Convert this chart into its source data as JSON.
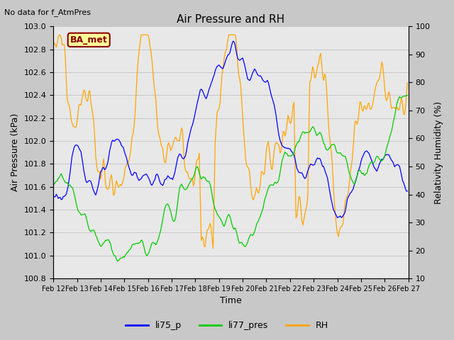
{
  "title": "Air Pressure and RH",
  "subtitle": "No data for f_AtmPres",
  "xlabel": "Time",
  "ylabel_left": "Air Pressure (kPa)",
  "ylabel_right": "Relativity Humidity (%)",
  "ylim_left": [
    100.8,
    103.0
  ],
  "ylim_right": [
    10,
    100
  ],
  "yticks_left": [
    100.8,
    101.0,
    101.2,
    101.4,
    101.6,
    101.8,
    102.0,
    102.2,
    102.4,
    102.6,
    102.8,
    103.0
  ],
  "yticks_right": [
    10,
    20,
    30,
    40,
    50,
    60,
    70,
    80,
    90,
    100
  ],
  "color_li75": "#0000ff",
  "color_li77": "#00cc00",
  "color_rh": "#ffa500",
  "legend_labels": [
    "li75_p",
    "li77_pres",
    "RH"
  ],
  "ba_met_text": "BA_met",
  "ba_met_color": "#8B0000",
  "ba_met_bg": "#FFFF99",
  "grid_color": "#c8c8c8",
  "plot_bg": "#e8e8e8",
  "fig_bg": "#c8c8c8"
}
